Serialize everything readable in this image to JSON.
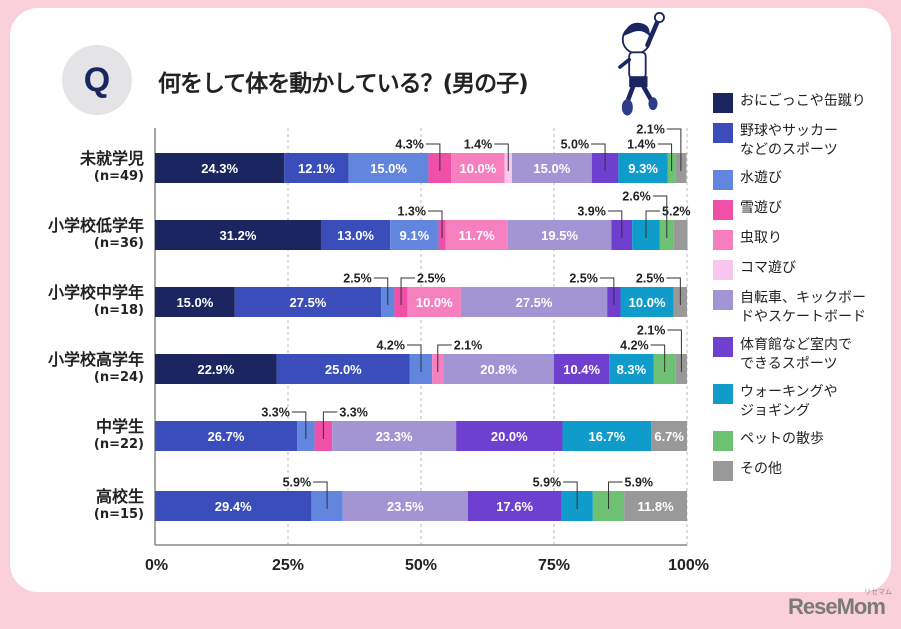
{
  "header": {
    "q_badge": "Q",
    "title": "何をして体を動かしている？(男の子)"
  },
  "branding": {
    "logo": "ReseMom",
    "logo_sub": "リセマム"
  },
  "chart_data": {
    "type": "bar",
    "orientation": "horizontal-stacked-100",
    "title": "何をして体を動かしている？(男の子)",
    "xlabel": "",
    "ylabel": "",
    "xlim": [
      0,
      100
    ],
    "x_ticks": [
      "0%",
      "25%",
      "50%",
      "75%",
      "100%"
    ],
    "grid": true,
    "legend_position": "right",
    "categories": [
      {
        "name": "未就学児",
        "n": "(n=49)"
      },
      {
        "name": "小学校低学年",
        "n": "(n=36)"
      },
      {
        "name": "小学校中学年",
        "n": "(n=18)"
      },
      {
        "name": "小学校高学年",
        "n": "(n=24)"
      },
      {
        "name": "中学生",
        "n": "(n=22)"
      },
      {
        "name": "高校生",
        "n": "(n=15)"
      }
    ],
    "series": [
      {
        "name": "おにごっこや缶蹴り",
        "color": "#1b2660",
        "values": [
          24.3,
          31.2,
          15.0,
          22.9,
          0,
          0
        ]
      },
      {
        "name": "野球やサッカー\nなどのスポーツ",
        "color": "#3a4dbb",
        "values": [
          12.1,
          13.0,
          27.5,
          25.0,
          26.7,
          29.4
        ]
      },
      {
        "name": "水遊び",
        "color": "#6286dd",
        "values": [
          15.0,
          9.1,
          2.5,
          4.2,
          3.3,
          5.9
        ]
      },
      {
        "name": "雪遊び",
        "color": "#f04fa8",
        "values": [
          4.3,
          1.3,
          2.5,
          0,
          3.3,
          0
        ]
      },
      {
        "name": "虫取り",
        "color": "#f67fc0",
        "values": [
          10.0,
          11.7,
          10.0,
          2.1,
          0,
          0
        ]
      },
      {
        "name": "コマ遊び",
        "color": "#f8c6ef",
        "values": [
          1.4,
          0,
          0,
          0,
          0,
          0
        ]
      },
      {
        "name": "自転車、キックボー\nドやスケートボード",
        "color": "#a394d4",
        "values": [
          15.0,
          19.5,
          27.5,
          20.8,
          23.3,
          23.5
        ]
      },
      {
        "name": "体育館など室内で\nできるスポーツ",
        "color": "#6f3fcf",
        "values": [
          5.0,
          3.9,
          2.5,
          10.4,
          20.0,
          17.6
        ]
      },
      {
        "name": "ウォーキングや\nジョギング",
        "color": "#0f9ccb",
        "values": [
          9.3,
          5.2,
          10.0,
          8.3,
          16.7,
          5.9
        ]
      },
      {
        "name": "ペットの散歩",
        "color": "#6dc173",
        "values": [
          1.4,
          2.6,
          0,
          4.2,
          0,
          5.9
        ]
      },
      {
        "name": "その他",
        "color": "#999999",
        "values": [
          2.1,
          2.6,
          2.5,
          2.1,
          6.7,
          11.8
        ]
      }
    ],
    "data_labels": [
      [
        "24.3%",
        "12.1%",
        "15.0%",
        "4.3%",
        "10.0%",
        "1.4%",
        "15.0%",
        "5.0%",
        "9.3%",
        "1.4%",
        "2.1%"
      ],
      [
        "31.2%",
        "13.0%",
        "9.1%",
        "1.3%",
        "11.7%",
        "",
        "19.5%",
        "3.9%",
        "5.2%",
        "2.6%",
        ""
      ],
      [
        "15.0%",
        "27.5%",
        "2.5%",
        "2.5%",
        "10.0%",
        "",
        "27.5%",
        "2.5%",
        "10.0%",
        "",
        "2.5%"
      ],
      [
        "22.9%",
        "25.0%",
        "4.2%",
        "",
        "2.1%",
        "",
        "20.8%",
        "10.4%",
        "8.3%",
        "4.2%",
        "2.1%"
      ],
      [
        "",
        "26.7%",
        "3.3%",
        "3.3%",
        "",
        "",
        "23.3%",
        "20.0%",
        "16.7%",
        "",
        "6.7%"
      ],
      [
        "",
        "29.4%",
        "5.9%",
        "",
        "",
        "",
        "23.5%",
        "17.6%",
        "5.9%",
        "5.9%",
        "11.8%"
      ]
    ]
  }
}
